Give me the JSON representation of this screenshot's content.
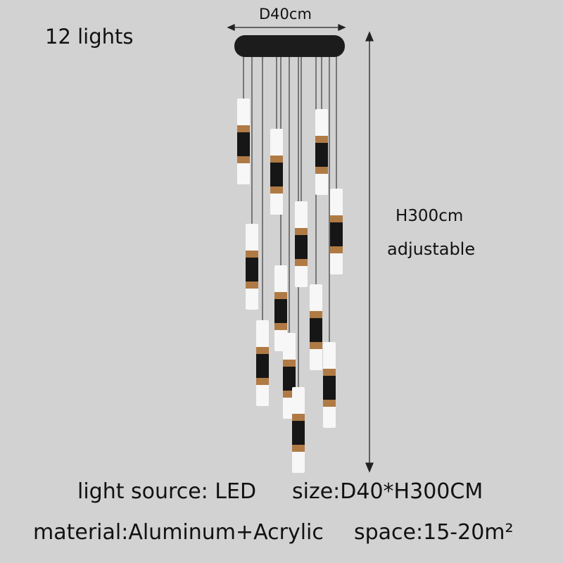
{
  "header": {
    "count_label": "12 lights"
  },
  "dimensions": {
    "diameter": "D40cm",
    "height": "H300cm",
    "height_note": "adjustable"
  },
  "specs": {
    "light_source": "light source:  LED",
    "size": "size:D40*H300CM",
    "material": "material:Aluminum+Acrylic",
    "space": "space:15-20m²"
  },
  "product": {
    "pendant_count": 12
  },
  "colors": {
    "background": "#d2d2d2",
    "canopy": "#1c1c1c",
    "band": "#b07a45",
    "body": "#161616",
    "shade": "#f7f7f7"
  }
}
